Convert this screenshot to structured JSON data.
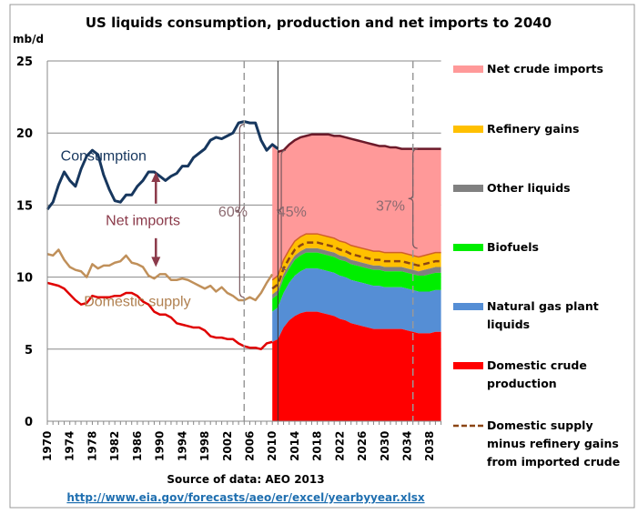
{
  "chart_data": {
    "type": "area",
    "title": "US liquids consumption, production and net imports to 2040",
    "ylabel": "mb/d",
    "ylim": [
      0,
      25
    ],
    "yticks": [
      "0",
      "5",
      "10",
      "15",
      "20",
      "25"
    ],
    "xlim": [
      1970,
      2040
    ],
    "xticks": [
      "1970",
      "1974",
      "1978",
      "1982",
      "1986",
      "1990",
      "1994",
      "1998",
      "2002",
      "2006",
      "2010",
      "2014",
      "2018",
      "2022",
      "2026",
      "2030",
      "2034",
      "2038"
    ],
    "grid": true,
    "legend_placement": "right",
    "source": "Source of data: AEO 2013",
    "link": "http://www.eia.gov/forecasts/aeo/er/excel/yearbyyear.xlsx",
    "historical": {
      "start_year": 1970,
      "consumption": [
        14.7,
        15.2,
        16.4,
        17.3,
        16.7,
        16.3,
        17.5,
        18.4,
        18.8,
        18.5,
        17.1,
        16.1,
        15.3,
        15.2,
        15.7,
        15.7,
        16.3,
        16.7,
        17.3,
        17.3,
        17.0,
        16.7,
        17.0,
        17.2,
        17.7,
        17.7,
        18.3,
        18.6,
        18.9,
        19.5,
        19.7,
        19.6,
        19.8,
        20.0,
        20.7,
        20.8,
        20.7,
        20.7,
        19.5,
        18.8,
        19.2,
        18.9
      ],
      "domestic_supply": [
        11.6,
        11.5,
        11.9,
        11.2,
        10.7,
        10.5,
        10.4,
        10.0,
        10.9,
        10.6,
        10.8,
        10.8,
        11.0,
        11.1,
        11.5,
        11.0,
        10.9,
        10.7,
        10.1,
        9.9,
        10.2,
        10.2,
        9.8,
        9.8,
        9.9,
        9.8,
        9.6,
        9.4,
        9.2,
        9.4,
        9.0,
        9.3,
        8.9,
        8.7,
        8.4,
        8.4,
        8.6,
        8.4,
        8.9,
        9.6,
        10.2
      ],
      "domestic_crude": [
        9.6,
        9.5,
        9.4,
        9.2,
        8.8,
        8.4,
        8.1,
        8.2,
        8.7,
        8.6,
        8.6,
        8.6,
        8.7,
        8.7,
        8.9,
        8.9,
        8.7,
        8.3,
        8.1,
        7.6,
        7.4,
        7.4,
        7.2,
        6.8,
        6.7,
        6.6,
        6.5,
        6.5,
        6.3,
        5.9,
        5.8,
        5.8,
        5.7,
        5.7,
        5.4,
        5.2,
        5.1,
        5.1,
        5.0,
        5.4,
        5.5
      ]
    },
    "projection": {
      "start_year": 2010,
      "series": [
        {
          "name": "Domestic crude production",
          "color": "#ff0000",
          "values": [
            5.5,
            5.7,
            6.5,
            7.0,
            7.3,
            7.5,
            7.6,
            7.6,
            7.6,
            7.5,
            7.4,
            7.3,
            7.1,
            7.0,
            6.8,
            6.7,
            6.6,
            6.5,
            6.4,
            6.4,
            6.4,
            6.4,
            6.4,
            6.4,
            6.3,
            6.2,
            6.1,
            6.1,
            6.1,
            6.2,
            6.2
          ]
        },
        {
          "name": "Natural gas plant liquids",
          "color": "#558ed5",
          "values": [
            2.1,
            2.2,
            2.4,
            2.6,
            2.8,
            2.9,
            3.0,
            3.0,
            3.0,
            3.0,
            3.0,
            3.0,
            3.0,
            3.0,
            3.0,
            3.0,
            3.0,
            3.0,
            3.0,
            3.0,
            2.9,
            2.9,
            2.9,
            2.9,
            2.9,
            2.9,
            2.9,
            2.9,
            2.9,
            2.9,
            2.9
          ]
        },
        {
          "name": "Biofuels",
          "color": "#00ee00",
          "values": [
            0.9,
            0.9,
            1.0,
            1.0,
            1.1,
            1.1,
            1.1,
            1.1,
            1.1,
            1.1,
            1.1,
            1.1,
            1.1,
            1.1,
            1.1,
            1.1,
            1.1,
            1.1,
            1.1,
            1.1,
            1.1,
            1.1,
            1.1,
            1.1,
            1.1,
            1.1,
            1.1,
            1.1,
            1.2,
            1.2,
            1.2
          ]
        },
        {
          "name": "Other liquids",
          "color": "#808080",
          "values": [
            0.3,
            0.3,
            0.3,
            0.3,
            0.3,
            0.3,
            0.3,
            0.3,
            0.3,
            0.3,
            0.3,
            0.3,
            0.3,
            0.3,
            0.3,
            0.3,
            0.3,
            0.3,
            0.3,
            0.3,
            0.3,
            0.3,
            0.3,
            0.3,
            0.3,
            0.3,
            0.3,
            0.4,
            0.4,
            0.4,
            0.4
          ]
        },
        {
          "name": "Refinery gains",
          "color": "#ffc000",
          "values": [
            1.0,
            1.0,
            1.0,
            1.0,
            1.0,
            1.0,
            1.0,
            1.0,
            1.0,
            1.0,
            1.0,
            1.0,
            1.0,
            1.0,
            1.0,
            1.0,
            1.0,
            1.0,
            1.0,
            1.0,
            1.0,
            1.0,
            1.0,
            1.0,
            1.0,
            1.0,
            1.0,
            1.0,
            1.0,
            1.0,
            1.0
          ]
        }
      ],
      "net_crude_imports": {
        "name": "Net crude imports",
        "color": "#ff9999"
      },
      "consumption": [
        19.2,
        18.7,
        18.8,
        19.2,
        19.5,
        19.7,
        19.8,
        19.9,
        19.9,
        19.9,
        19.9,
        19.8,
        19.8,
        19.7,
        19.6,
        19.5,
        19.4,
        19.3,
        19.2,
        19.1,
        19.1,
        19.0,
        19.0,
        18.9,
        18.9,
        18.9,
        18.9,
        18.9,
        18.9,
        18.9,
        18.9
      ],
      "supply_minus_gains": {
        "name": "Domestic supply minus refinery gains from imported crude",
        "color": "#8b4513",
        "values": [
          9.2,
          9.5,
          10.6,
          11.3,
          11.9,
          12.2,
          12.4,
          12.4,
          12.4,
          12.3,
          12.2,
          12.1,
          11.9,
          11.8,
          11.6,
          11.5,
          11.4,
          11.3,
          11.2,
          11.2,
          11.1,
          11.1,
          11.1,
          11.1,
          11.0,
          10.9,
          10.8,
          10.9,
          11.0,
          11.1,
          11.1
        ]
      }
    },
    "colors": {
      "consumption": "#17375e",
      "domestic_supply": "#c0905a",
      "domestic_crude": "#e00000",
      "annotation": "#8b3a4a",
      "brace": "#7a5a60"
    },
    "annotations": [
      {
        "text": "Consumption",
        "x": 1980,
        "y": 18.1,
        "color": "#17375e"
      },
      {
        "text": "Net imports",
        "x": 1987,
        "y": 13.6,
        "color": "#8b3a4a"
      },
      {
        "text": "Domestic supply",
        "x": 1986,
        "y": 8.0,
        "color": "#b08050"
      },
      {
        "text": "60%",
        "x": 2003,
        "y": 14.2,
        "color": "#8b6a70"
      },
      {
        "text": "45%",
        "x": 2013.5,
        "y": 14.2,
        "color": "#8b6a70"
      },
      {
        "text": "37%",
        "x": 2031,
        "y": 14.6,
        "color": "#8b6a70"
      }
    ],
    "vlines": [
      {
        "year": 2005,
        "style": "dashed"
      },
      {
        "year": 2011,
        "style": "solid"
      },
      {
        "year": 2035,
        "style": "dashed"
      }
    ],
    "legend": [
      {
        "label": [
          "Net crude imports"
        ],
        "color": "#ff9999",
        "kind": "box"
      },
      {
        "label": [
          "Refinery gains"
        ],
        "color": "#ffc000",
        "kind": "box"
      },
      {
        "label": [
          "Other liquids"
        ],
        "color": "#808080",
        "kind": "box"
      },
      {
        "label": [
          "Biofuels"
        ],
        "color": "#00ee00",
        "kind": "box"
      },
      {
        "label": [
          "Natural gas plant",
          "liquids"
        ],
        "color": "#558ed5",
        "kind": "box"
      },
      {
        "label": [
          "Domestic crude",
          "production"
        ],
        "color": "#ff0000",
        "kind": "box"
      },
      {
        "label": [
          "Domestic supply",
          "minus refinery gains",
          "from imported crude"
        ],
        "color": "#8b4513",
        "kind": "dash"
      }
    ]
  }
}
